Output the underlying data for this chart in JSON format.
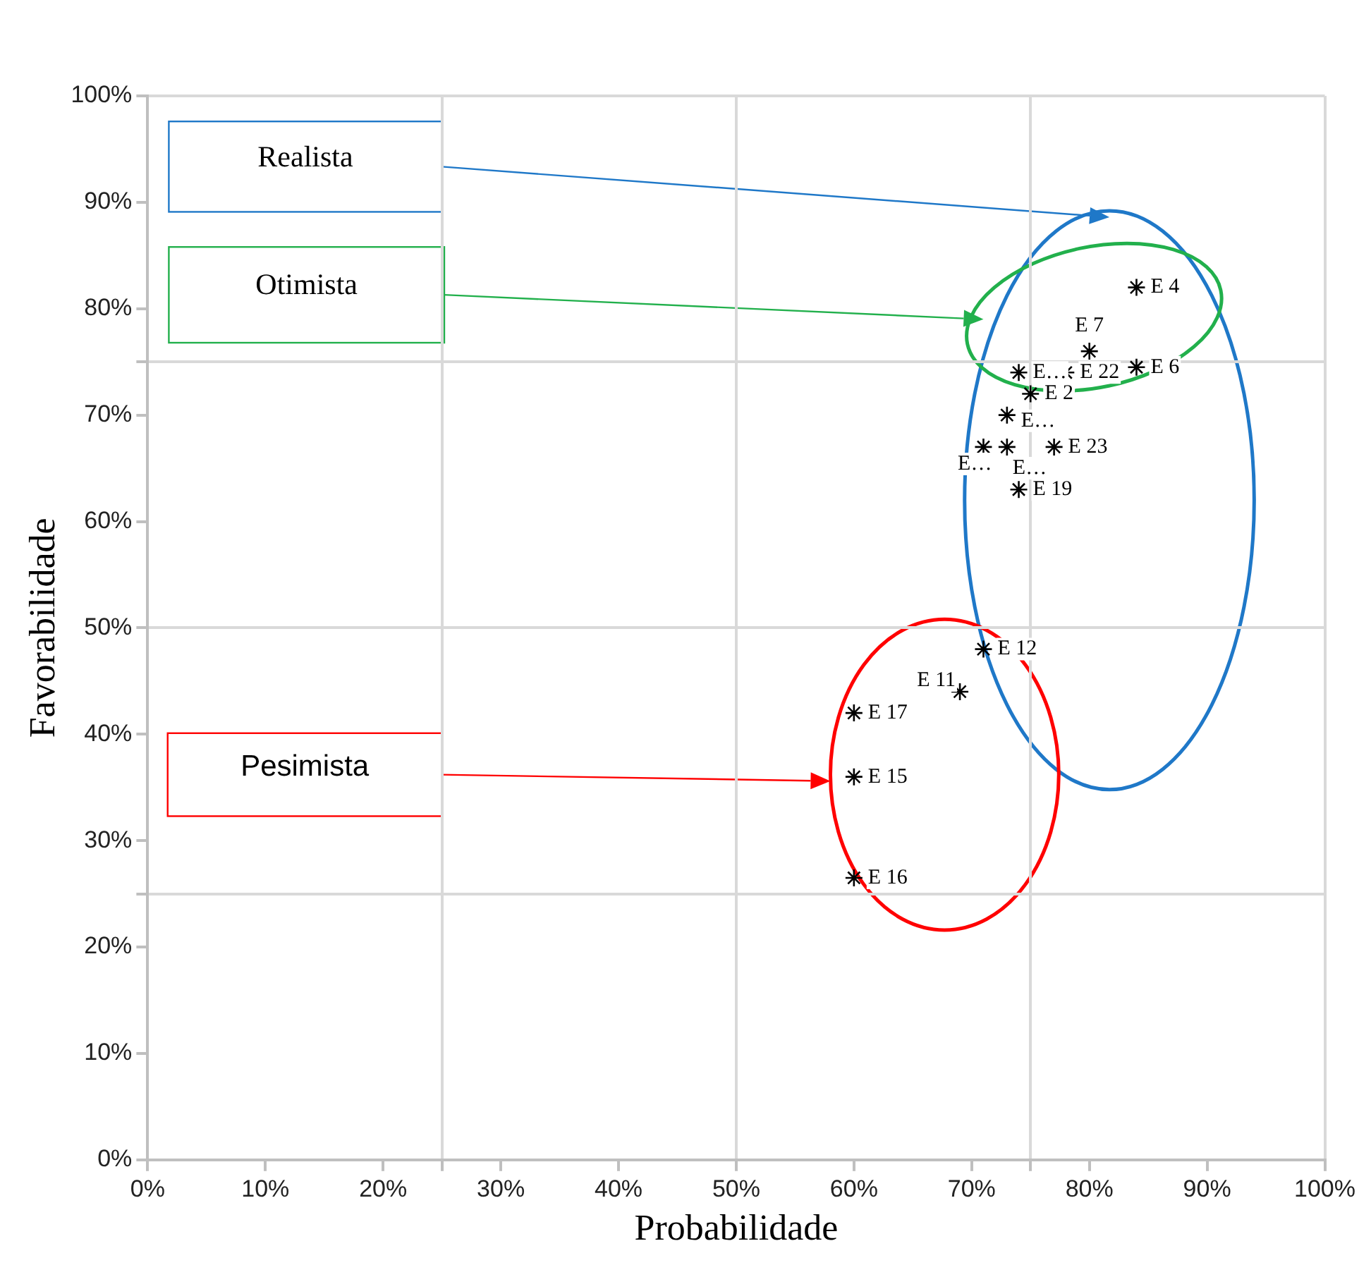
{
  "chart_data": {
    "type": "scatter",
    "xlabel": "Probabilidade",
    "ylabel": "Favorabilidade",
    "x": [
      84,
      80,
      74,
      78,
      84,
      75,
      73,
      71,
      73,
      77,
      74,
      71,
      69,
      60,
      60,
      60
    ],
    "values": [
      82,
      76,
      74,
      74,
      74.5,
      72,
      70,
      67,
      67,
      67,
      63,
      48,
      44,
      42,
      36,
      26.5
    ],
    "value_labels": [
      "E 4",
      "E 7",
      "E…",
      "E 22",
      "E 6",
      "E 2",
      "E…",
      "E…",
      "E…",
      "E 23",
      "E 19",
      "E 12",
      "E 11",
      "E 17",
      "E 15",
      "E 16"
    ],
    "color": "#000000",
    "marker": "cross",
    "xlim": [
      0,
      100
    ],
    "ylim": [
      0,
      100
    ],
    "xticks": [
      {
        "value": 0,
        "label": "0%"
      },
      {
        "value": 10,
        "label": "10%"
      },
      {
        "value": 20,
        "label": "20%"
      },
      {
        "value": 25,
        "label": null
      },
      {
        "value": 30,
        "label": "30%"
      },
      {
        "value": 40,
        "label": "40%"
      },
      {
        "value": 50,
        "label": "50%"
      },
      {
        "value": 60,
        "label": "60%"
      },
      {
        "value": 70,
        "label": "70%"
      },
      {
        "value": 75,
        "label": null
      },
      {
        "value": 80,
        "label": "80%"
      },
      {
        "value": 90,
        "label": "90%"
      },
      {
        "value": 100,
        "label": "100%"
      }
    ],
    "yticks": [
      {
        "value": 0,
        "label": "0%"
      },
      {
        "value": 10,
        "label": "10%"
      },
      {
        "value": 20,
        "label": "20%"
      },
      {
        "value": 25,
        "label": null
      },
      {
        "value": 30,
        "label": "30%"
      },
      {
        "value": 40,
        "label": "40%"
      },
      {
        "value": 50,
        "label": "50%"
      },
      {
        "value": 60,
        "label": "60%"
      },
      {
        "value": 70,
        "label": "70%"
      },
      {
        "value": 75,
        "label": null
      },
      {
        "value": 80,
        "label": "80%"
      },
      {
        "value": 90,
        "label": "90%"
      },
      {
        "value": 100,
        "label": "100%"
      }
    ],
    "grid": true,
    "annotations": [
      "Realista",
      "Otimista",
      "Pesimista"
    ]
  }
}
